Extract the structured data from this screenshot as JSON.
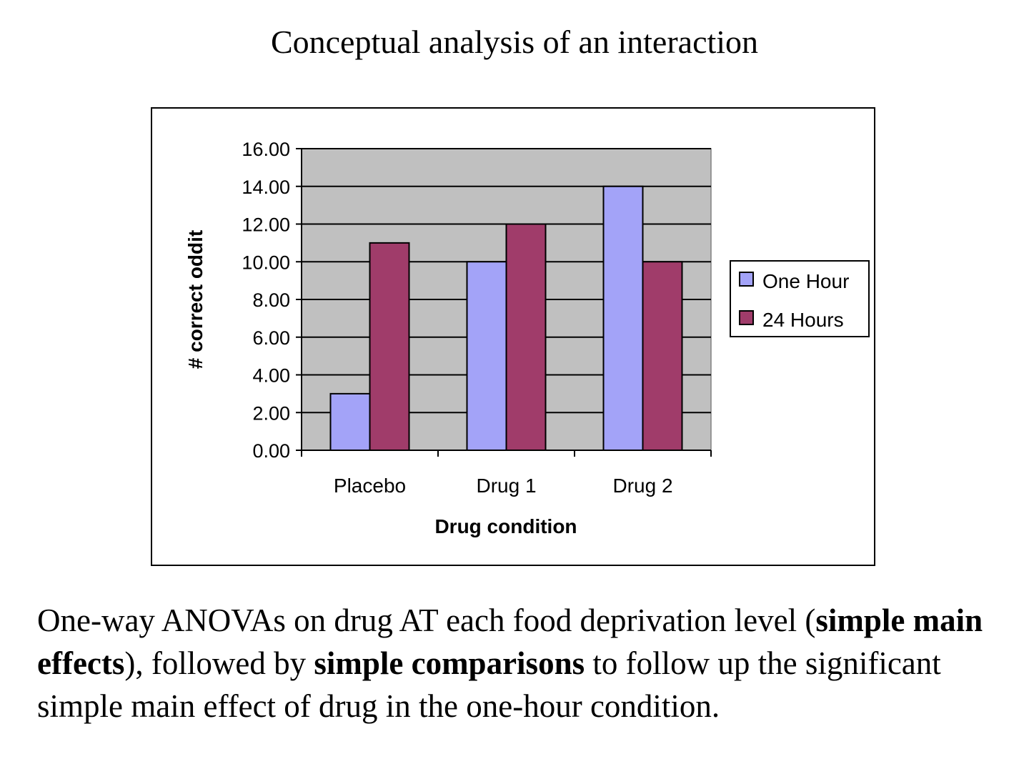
{
  "slide": {
    "title": "Conceptual analysis of an interaction",
    "body_parts": [
      {
        "text": "One-way ANOVAs on drug AT each food deprivation level (",
        "bold": false
      },
      {
        "text": "simple main effects",
        "bold": true
      },
      {
        "text": "), followed by ",
        "bold": false
      },
      {
        "text": "simple comparisons",
        "bold": true
      },
      {
        "text": " to follow up the significant simple main effect of drug in the one-hour condition.",
        "bold": false
      }
    ]
  },
  "chart_data": {
    "type": "bar",
    "title": "",
    "xlabel": "Drug condition",
    "ylabel": "# correct oddity",
    "ylabel_shown": "# correct oddit",
    "categories": [
      "Placebo",
      "Drug 1",
      "Drug 2"
    ],
    "series": [
      {
        "name": "One Hour",
        "values": [
          3,
          10,
          14
        ],
        "color": "#a3a3f8"
      },
      {
        "name": "24 Hours",
        "values": [
          11,
          12,
          10
        ],
        "color": "#a03c6a"
      }
    ],
    "ylim": [
      0,
      16
    ],
    "yticks": [
      "0.00",
      "2.00",
      "4.00",
      "6.00",
      "8.00",
      "10.00",
      "12.00",
      "14.00",
      "16.00"
    ],
    "plot_background": "#c0c0c0",
    "grid": true,
    "legend_position": "right"
  }
}
